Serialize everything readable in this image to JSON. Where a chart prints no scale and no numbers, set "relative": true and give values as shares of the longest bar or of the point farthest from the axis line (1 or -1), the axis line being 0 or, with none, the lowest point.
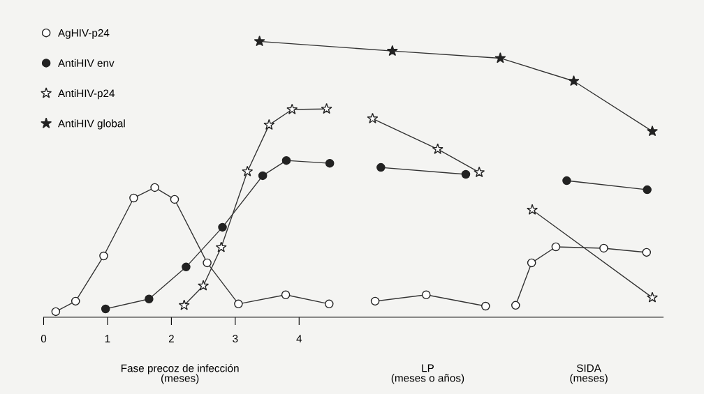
{
  "chart_data": {
    "type": "line",
    "relative": true,
    "tick_labels": "x",
    "grid": false,
    "legend": "top left",
    "line_style": "solid",
    "xlim": [
      0,
      9.7
    ],
    "xticks": [
      0,
      1,
      2,
      3,
      4
    ],
    "annotations": [
      "Fase precoz de infección\n(meses)",
      "LP\n(meses o años)",
      "SIDA\n(meses)"
    ],
    "series": [
      {
        "name": "AgHIV-p24",
        "color": "#ffffff",
        "marker": "circle",
        "x": [
          0.19,
          0.5,
          0.94,
          1.41,
          1.74,
          2.05,
          2.56,
          3.05,
          3.79,
          4.47,
          4.61,
          5.19,
          5.99,
          6.92,
          7.14,
          7.39,
          7.64,
          8.02,
          8.77,
          9.44
        ],
        "values": [
          0.02,
          0.058,
          0.222,
          0.432,
          0.47,
          0.427,
          0.197,
          0.048,
          0.081,
          0.048,
          null,
          0.058,
          0.081,
          0.04,
          null,
          0.043,
          0.197,
          0.255,
          0.25,
          0.235
        ]
      },
      {
        "name": "AntiHIV env",
        "color": "#222222",
        "marker": "circle",
        "x": [
          0.97,
          1.65,
          2.23,
          2.8,
          3.43,
          3.8,
          4.48,
          4.61,
          5.28,
          6.61,
          7.14,
          8.19,
          9.45
        ],
        "values": [
          0.03,
          0.066,
          0.182,
          0.326,
          0.513,
          0.568,
          0.558,
          null,
          0.543,
          0.518,
          null,
          0.495,
          0.462
        ]
      },
      {
        "name": "AntiHIV-p24",
        "color": "#ffffff",
        "marker": "star",
        "x": [
          2.2,
          2.5,
          2.78,
          3.19,
          3.53,
          3.89,
          4.43,
          4.61,
          5.15,
          6.17,
          6.82,
          7.14,
          7.65,
          9.53
        ],
        "values": [
          0.043,
          0.114,
          0.253,
          0.528,
          0.697,
          0.753,
          0.755,
          null,
          0.72,
          0.609,
          0.525,
          null,
          0.389,
          0.071
        ]
      },
      {
        "name": "AntiHIV global",
        "color": "#222222",
        "marker": "star",
        "x": [
          3.38,
          5.46,
          7.15,
          8.3,
          9.53
        ],
        "values": [
          1.0,
          0.965,
          0.939,
          0.856,
          0.674
        ]
      }
    ]
  }
}
